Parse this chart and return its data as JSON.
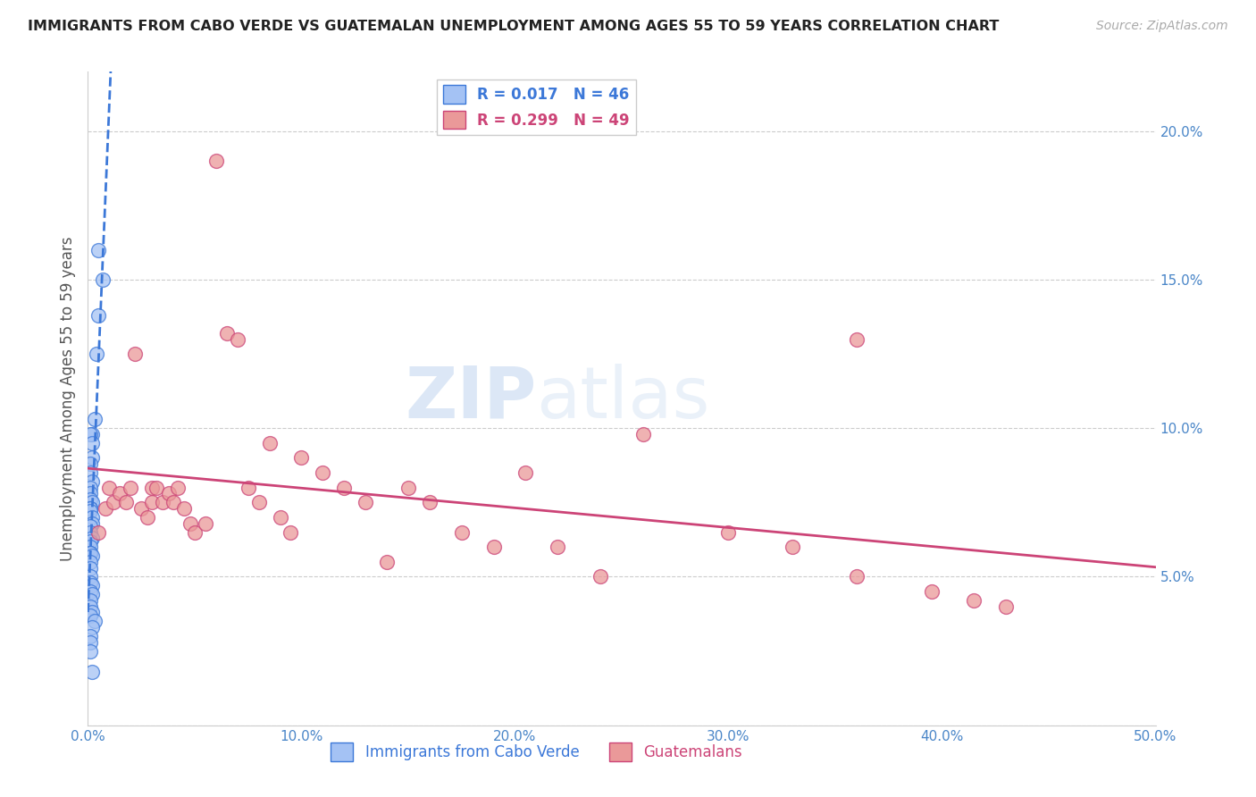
{
  "title": "IMMIGRANTS FROM CABO VERDE VS GUATEMALAN UNEMPLOYMENT AMONG AGES 55 TO 59 YEARS CORRELATION CHART",
  "source": "Source: ZipAtlas.com",
  "ylabel": "Unemployment Among Ages 55 to 59 years",
  "xlim": [
    0.0,
    0.5
  ],
  "ylim": [
    0.0,
    0.22
  ],
  "xticks": [
    0.0,
    0.1,
    0.2,
    0.3,
    0.4,
    0.5
  ],
  "xticklabels": [
    "0.0%",
    "10.0%",
    "20.0%",
    "30.0%",
    "40.0%",
    "50.0%"
  ],
  "yticks_right": [
    0.0,
    0.05,
    0.1,
    0.15,
    0.2
  ],
  "yticklabels_right": [
    "",
    "5.0%",
    "10.0%",
    "15.0%",
    "20.0%"
  ],
  "legend_r1": "R = 0.017",
  "legend_n1": "N = 46",
  "legend_r2": "R = 0.299",
  "legend_n2": "N = 49",
  "blue_color": "#a4c2f4",
  "pink_color": "#ea9999",
  "blue_line_color": "#3c78d8",
  "pink_line_color": "#cc4477",
  "axis_color": "#4a86c8",
  "watermark_zip": "ZIP",
  "watermark_atlas": "atlas",
  "blue_scatter_x": [
    0.005,
    0.007,
    0.005,
    0.004,
    0.003,
    0.002,
    0.001,
    0.002,
    0.002,
    0.001,
    0.001,
    0.002,
    0.001,
    0.001,
    0.001,
    0.002,
    0.001,
    0.001,
    0.001,
    0.002,
    0.002,
    0.001,
    0.001,
    0.002,
    0.001,
    0.001,
    0.001,
    0.001,
    0.002,
    0.001,
    0.001,
    0.001,
    0.001,
    0.002,
    0.001,
    0.002,
    0.001,
    0.001,
    0.002,
    0.001,
    0.003,
    0.002,
    0.001,
    0.001,
    0.001,
    0.002
  ],
  "blue_scatter_y": [
    0.16,
    0.15,
    0.138,
    0.125,
    0.103,
    0.098,
    0.098,
    0.095,
    0.09,
    0.088,
    0.085,
    0.082,
    0.08,
    0.078,
    0.076,
    0.075,
    0.073,
    0.073,
    0.072,
    0.07,
    0.068,
    0.067,
    0.065,
    0.063,
    0.062,
    0.06,
    0.058,
    0.058,
    0.057,
    0.055,
    0.053,
    0.05,
    0.048,
    0.047,
    0.045,
    0.044,
    0.042,
    0.04,
    0.038,
    0.037,
    0.035,
    0.033,
    0.03,
    0.028,
    0.025,
    0.018
  ],
  "pink_scatter_x": [
    0.005,
    0.008,
    0.01,
    0.012,
    0.015,
    0.018,
    0.02,
    0.022,
    0.025,
    0.028,
    0.03,
    0.03,
    0.032,
    0.035,
    0.038,
    0.04,
    0.042,
    0.045,
    0.048,
    0.05,
    0.055,
    0.06,
    0.065,
    0.07,
    0.075,
    0.08,
    0.085,
    0.09,
    0.095,
    0.1,
    0.11,
    0.12,
    0.13,
    0.14,
    0.15,
    0.16,
    0.175,
    0.19,
    0.205,
    0.22,
    0.24,
    0.26,
    0.3,
    0.33,
    0.36,
    0.395,
    0.415,
    0.43,
    0.36
  ],
  "pink_scatter_y": [
    0.065,
    0.073,
    0.08,
    0.075,
    0.078,
    0.075,
    0.08,
    0.125,
    0.073,
    0.07,
    0.08,
    0.075,
    0.08,
    0.075,
    0.078,
    0.075,
    0.08,
    0.073,
    0.068,
    0.065,
    0.068,
    0.19,
    0.132,
    0.13,
    0.08,
    0.075,
    0.095,
    0.07,
    0.065,
    0.09,
    0.085,
    0.08,
    0.075,
    0.055,
    0.08,
    0.075,
    0.065,
    0.06,
    0.085,
    0.06,
    0.05,
    0.098,
    0.065,
    0.06,
    0.05,
    0.045,
    0.042,
    0.04,
    0.13
  ]
}
